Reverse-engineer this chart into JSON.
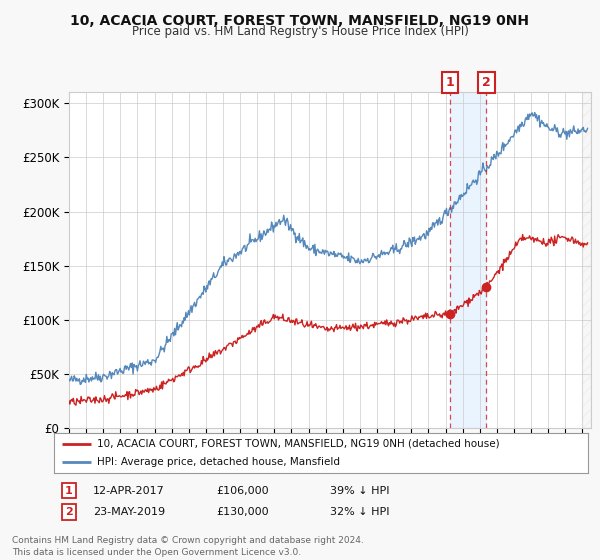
{
  "title": "10, ACACIA COURT, FOREST TOWN, MANSFIELD, NG19 0NH",
  "subtitle": "Price paid vs. HM Land Registry's House Price Index (HPI)",
  "ylabel_ticks": [
    "£0",
    "£50K",
    "£100K",
    "£150K",
    "£200K",
    "£250K",
    "£300K"
  ],
  "ytick_values": [
    0,
    50000,
    100000,
    150000,
    200000,
    250000,
    300000
  ],
  "ylim": [
    0,
    310000
  ],
  "xlim_start": 1995.0,
  "xlim_end": 2025.5,
  "hpi_color": "#5588bb",
  "price_color": "#cc2222",
  "shade_color": "#ddeeff",
  "marker1_year": 2017.28,
  "marker1_price": 106000,
  "marker2_year": 2019.39,
  "marker2_price": 130000,
  "legend_label1": "10, ACACIA COURT, FOREST TOWN, MANSFIELD, NG19 0NH (detached house)",
  "legend_label2": "HPI: Average price, detached house, Mansfield",
  "annotation1_date": "12-APR-2017",
  "annotation1_price": "£106,000",
  "annotation1_note": "39% ↓ HPI",
  "annotation2_date": "23-MAY-2019",
  "annotation2_price": "£130,000",
  "annotation2_note": "32% ↓ HPI",
  "footer": "Contains HM Land Registry data © Crown copyright and database right 2024.\nThis data is licensed under the Open Government Licence v3.0.",
  "background_color": "#f8f8f8",
  "plot_bg_color": "#ffffff"
}
